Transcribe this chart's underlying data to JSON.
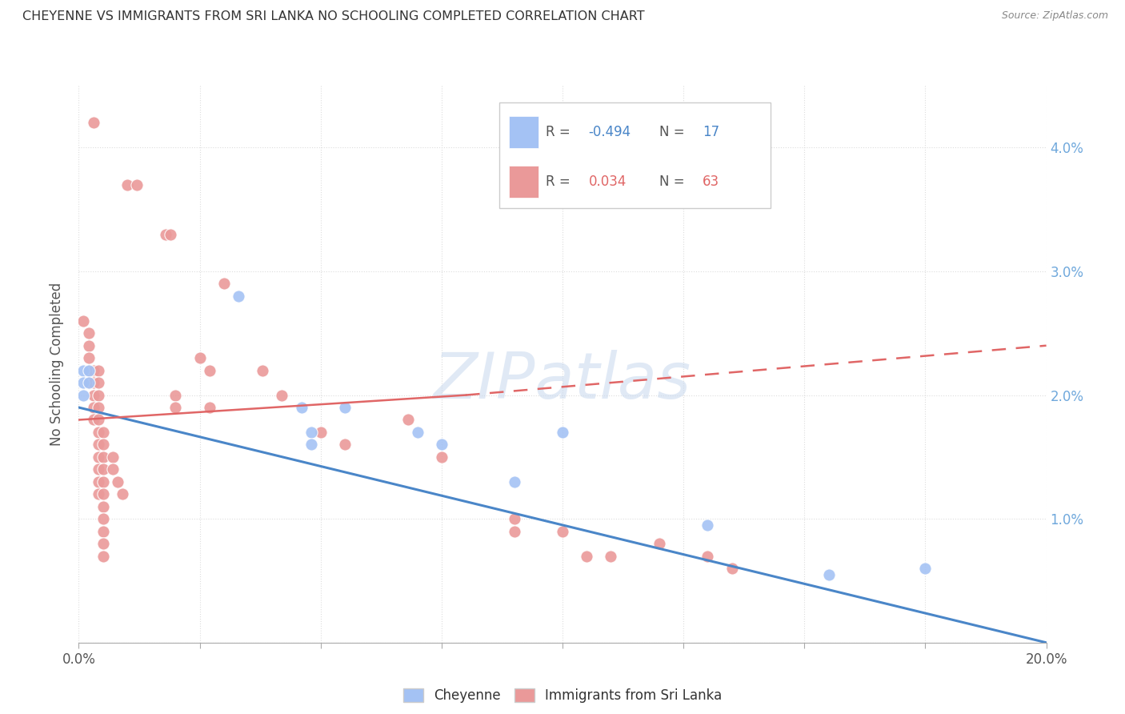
{
  "title": "CHEYENNE VS IMMIGRANTS FROM SRI LANKA NO SCHOOLING COMPLETED CORRELATION CHART",
  "source": "Source: ZipAtlas.com",
  "ylabel": "No Schooling Completed",
  "xlim": [
    0.0,
    0.2
  ],
  "ylim": [
    0.0,
    0.045
  ],
  "blue_color": "#a4c2f4",
  "pink_color": "#ea9999",
  "blue_line_color": "#4a86c8",
  "pink_line_color": "#e06666",
  "watermark": "ZIPatlas",
  "blue_points": [
    [
      0.001,
      0.022
    ],
    [
      0.001,
      0.021
    ],
    [
      0.001,
      0.02
    ],
    [
      0.002,
      0.022
    ],
    [
      0.002,
      0.021
    ],
    [
      0.033,
      0.028
    ],
    [
      0.046,
      0.019
    ],
    [
      0.048,
      0.017
    ],
    [
      0.048,
      0.016
    ],
    [
      0.055,
      0.019
    ],
    [
      0.07,
      0.017
    ],
    [
      0.075,
      0.016
    ],
    [
      0.09,
      0.013
    ],
    [
      0.1,
      0.017
    ],
    [
      0.13,
      0.0095
    ],
    [
      0.155,
      0.0055
    ],
    [
      0.175,
      0.006
    ]
  ],
  "pink_points": [
    [
      0.003,
      0.042
    ],
    [
      0.01,
      0.037
    ],
    [
      0.012,
      0.037
    ],
    [
      0.018,
      0.033
    ],
    [
      0.019,
      0.033
    ],
    [
      0.001,
      0.026
    ],
    [
      0.002,
      0.025
    ],
    [
      0.002,
      0.024
    ],
    [
      0.002,
      0.023
    ],
    [
      0.002,
      0.022
    ],
    [
      0.002,
      0.021
    ],
    [
      0.003,
      0.022
    ],
    [
      0.003,
      0.021
    ],
    [
      0.003,
      0.02
    ],
    [
      0.003,
      0.019
    ],
    [
      0.003,
      0.018
    ],
    [
      0.004,
      0.022
    ],
    [
      0.004,
      0.021
    ],
    [
      0.004,
      0.02
    ],
    [
      0.004,
      0.019
    ],
    [
      0.004,
      0.018
    ],
    [
      0.004,
      0.017
    ],
    [
      0.004,
      0.016
    ],
    [
      0.004,
      0.015
    ],
    [
      0.004,
      0.014
    ],
    [
      0.004,
      0.013
    ],
    [
      0.004,
      0.012
    ],
    [
      0.005,
      0.017
    ],
    [
      0.005,
      0.016
    ],
    [
      0.005,
      0.015
    ],
    [
      0.005,
      0.014
    ],
    [
      0.005,
      0.013
    ],
    [
      0.005,
      0.012
    ],
    [
      0.005,
      0.011
    ],
    [
      0.005,
      0.01
    ],
    [
      0.005,
      0.009
    ],
    [
      0.005,
      0.008
    ],
    [
      0.005,
      0.007
    ],
    [
      0.007,
      0.015
    ],
    [
      0.007,
      0.014
    ],
    [
      0.008,
      0.013
    ],
    [
      0.009,
      0.012
    ],
    [
      0.02,
      0.02
    ],
    [
      0.02,
      0.019
    ],
    [
      0.025,
      0.023
    ],
    [
      0.027,
      0.022
    ],
    [
      0.027,
      0.019
    ],
    [
      0.03,
      0.029
    ],
    [
      0.038,
      0.022
    ],
    [
      0.042,
      0.02
    ],
    [
      0.05,
      0.017
    ],
    [
      0.055,
      0.016
    ],
    [
      0.068,
      0.018
    ],
    [
      0.075,
      0.015
    ],
    [
      0.09,
      0.01
    ],
    [
      0.09,
      0.009
    ],
    [
      0.1,
      0.009
    ],
    [
      0.105,
      0.007
    ],
    [
      0.11,
      0.007
    ],
    [
      0.12,
      0.008
    ],
    [
      0.13,
      0.007
    ],
    [
      0.135,
      0.006
    ]
  ],
  "blue_line": [
    [
      0.0,
      0.019
    ],
    [
      0.2,
      0.0
    ]
  ],
  "pink_line_solid": [
    [
      0.0,
      0.018
    ],
    [
      0.08,
      0.02
    ]
  ],
  "pink_line_dash": [
    [
      0.08,
      0.02
    ],
    [
      0.2,
      0.024
    ]
  ],
  "background_color": "#ffffff",
  "grid_color": "#dddddd"
}
